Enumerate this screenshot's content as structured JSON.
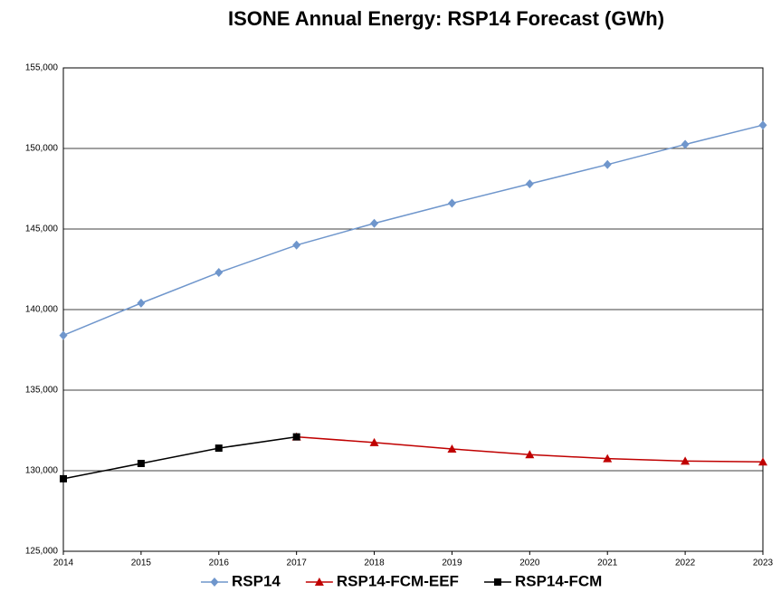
{
  "chart_data": {
    "type": "line",
    "title": "ISONE Annual Energy: RSP14 Forecast (GWh)",
    "x": [
      2014,
      2015,
      2016,
      2017,
      2018,
      2019,
      2020,
      2021,
      2022,
      2023
    ],
    "xlim": [
      2014,
      2023
    ],
    "xticks": [
      2014,
      2015,
      2016,
      2017,
      2018,
      2019,
      2020,
      2021,
      2022,
      2023
    ],
    "ylim": [
      125000,
      155000
    ],
    "yticks": [
      {
        "value": 125000,
        "label": "125,000"
      },
      {
        "value": 130000,
        "label": "130,000"
      },
      {
        "value": 135000,
        "label": "135,000"
      },
      {
        "value": 140000,
        "label": "140,000"
      },
      {
        "value": 145000,
        "label": "145,000"
      },
      {
        "value": 150000,
        "label": "150,000"
      },
      {
        "value": 155000,
        "label": "155,000"
      }
    ],
    "grid": true,
    "legend": "bottom",
    "series": [
      {
        "name": "RSP14",
        "color": "#6f96cc",
        "marker": "diamond",
        "values": [
          138400,
          140400,
          142300,
          144000,
          145350,
          146600,
          147800,
          149000,
          150250,
          151450
        ]
      },
      {
        "name": "RSP14-FCM-EEF",
        "color": "#c00000",
        "marker": "triangle",
        "values": [
          null,
          null,
          null,
          132100,
          131750,
          131350,
          131000,
          130750,
          130600,
          130550
        ]
      },
      {
        "name": "RSP14-FCM",
        "color": "#000000",
        "marker": "square",
        "values": [
          129500,
          130450,
          131400,
          132100,
          null,
          null,
          null,
          null,
          null,
          null
        ]
      }
    ]
  }
}
